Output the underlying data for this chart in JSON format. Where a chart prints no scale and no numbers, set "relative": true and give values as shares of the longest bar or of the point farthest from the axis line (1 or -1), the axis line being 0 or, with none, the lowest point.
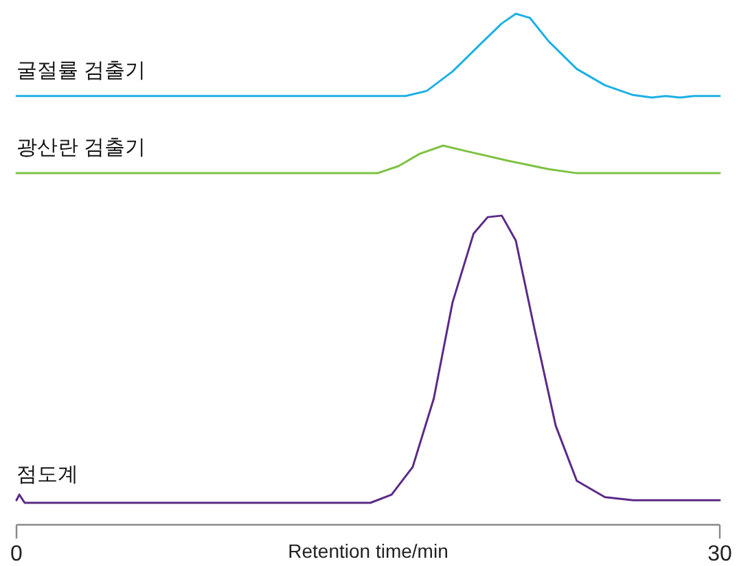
{
  "chart_data": {
    "type": "line",
    "relative": true,
    "xlabel": "Retention time/min",
    "xlim": [
      0,
      30
    ],
    "xticks": [
      0,
      30
    ],
    "tick_labels": "x",
    "series": [
      {
        "name": "굴절률 검출기",
        "color": "#1cb0e6",
        "x": [
          0,
          16.6,
          17.5,
          18.6,
          19.8,
          20.7,
          21.3,
          21.9,
          22.7,
          23.9,
          25.1,
          26.3,
          27.1,
          27.7,
          28.3,
          28.9,
          30
        ],
        "values": [
          0.839,
          0.839,
          0.849,
          0.887,
          0.941,
          0.981,
          1,
          0.992,
          0.946,
          0.892,
          0.86,
          0.841,
          0.836,
          0.839,
          0.836,
          0.839,
          0.839
        ]
      },
      {
        "name": "광산란 검출기",
        "color": "#7dc142",
        "x": [
          0,
          15.4,
          16.3,
          17.2,
          18.2,
          19.2,
          21.0,
          22.7,
          23.9,
          30
        ],
        "values": [
          0.688,
          0.688,
          0.702,
          0.726,
          0.742,
          0.731,
          0.712,
          0.696,
          0.688,
          0.688
        ]
      },
      {
        "name": "점도계",
        "color": "#5b2a86",
        "x": [
          0,
          0.12,
          0.35,
          15.1,
          16.0,
          16.9,
          17.8,
          18.6,
          19.5,
          20.1,
          20.7,
          21.3,
          22.1,
          23.0,
          23.9,
          25.1,
          26.3,
          30
        ],
        "values": [
          0.048,
          0.059,
          0.043,
          0.043,
          0.059,
          0.113,
          0.247,
          0.435,
          0.57,
          0.602,
          0.605,
          0.556,
          0.382,
          0.194,
          0.086,
          0.054,
          0.048,
          0.048
        ]
      }
    ]
  }
}
